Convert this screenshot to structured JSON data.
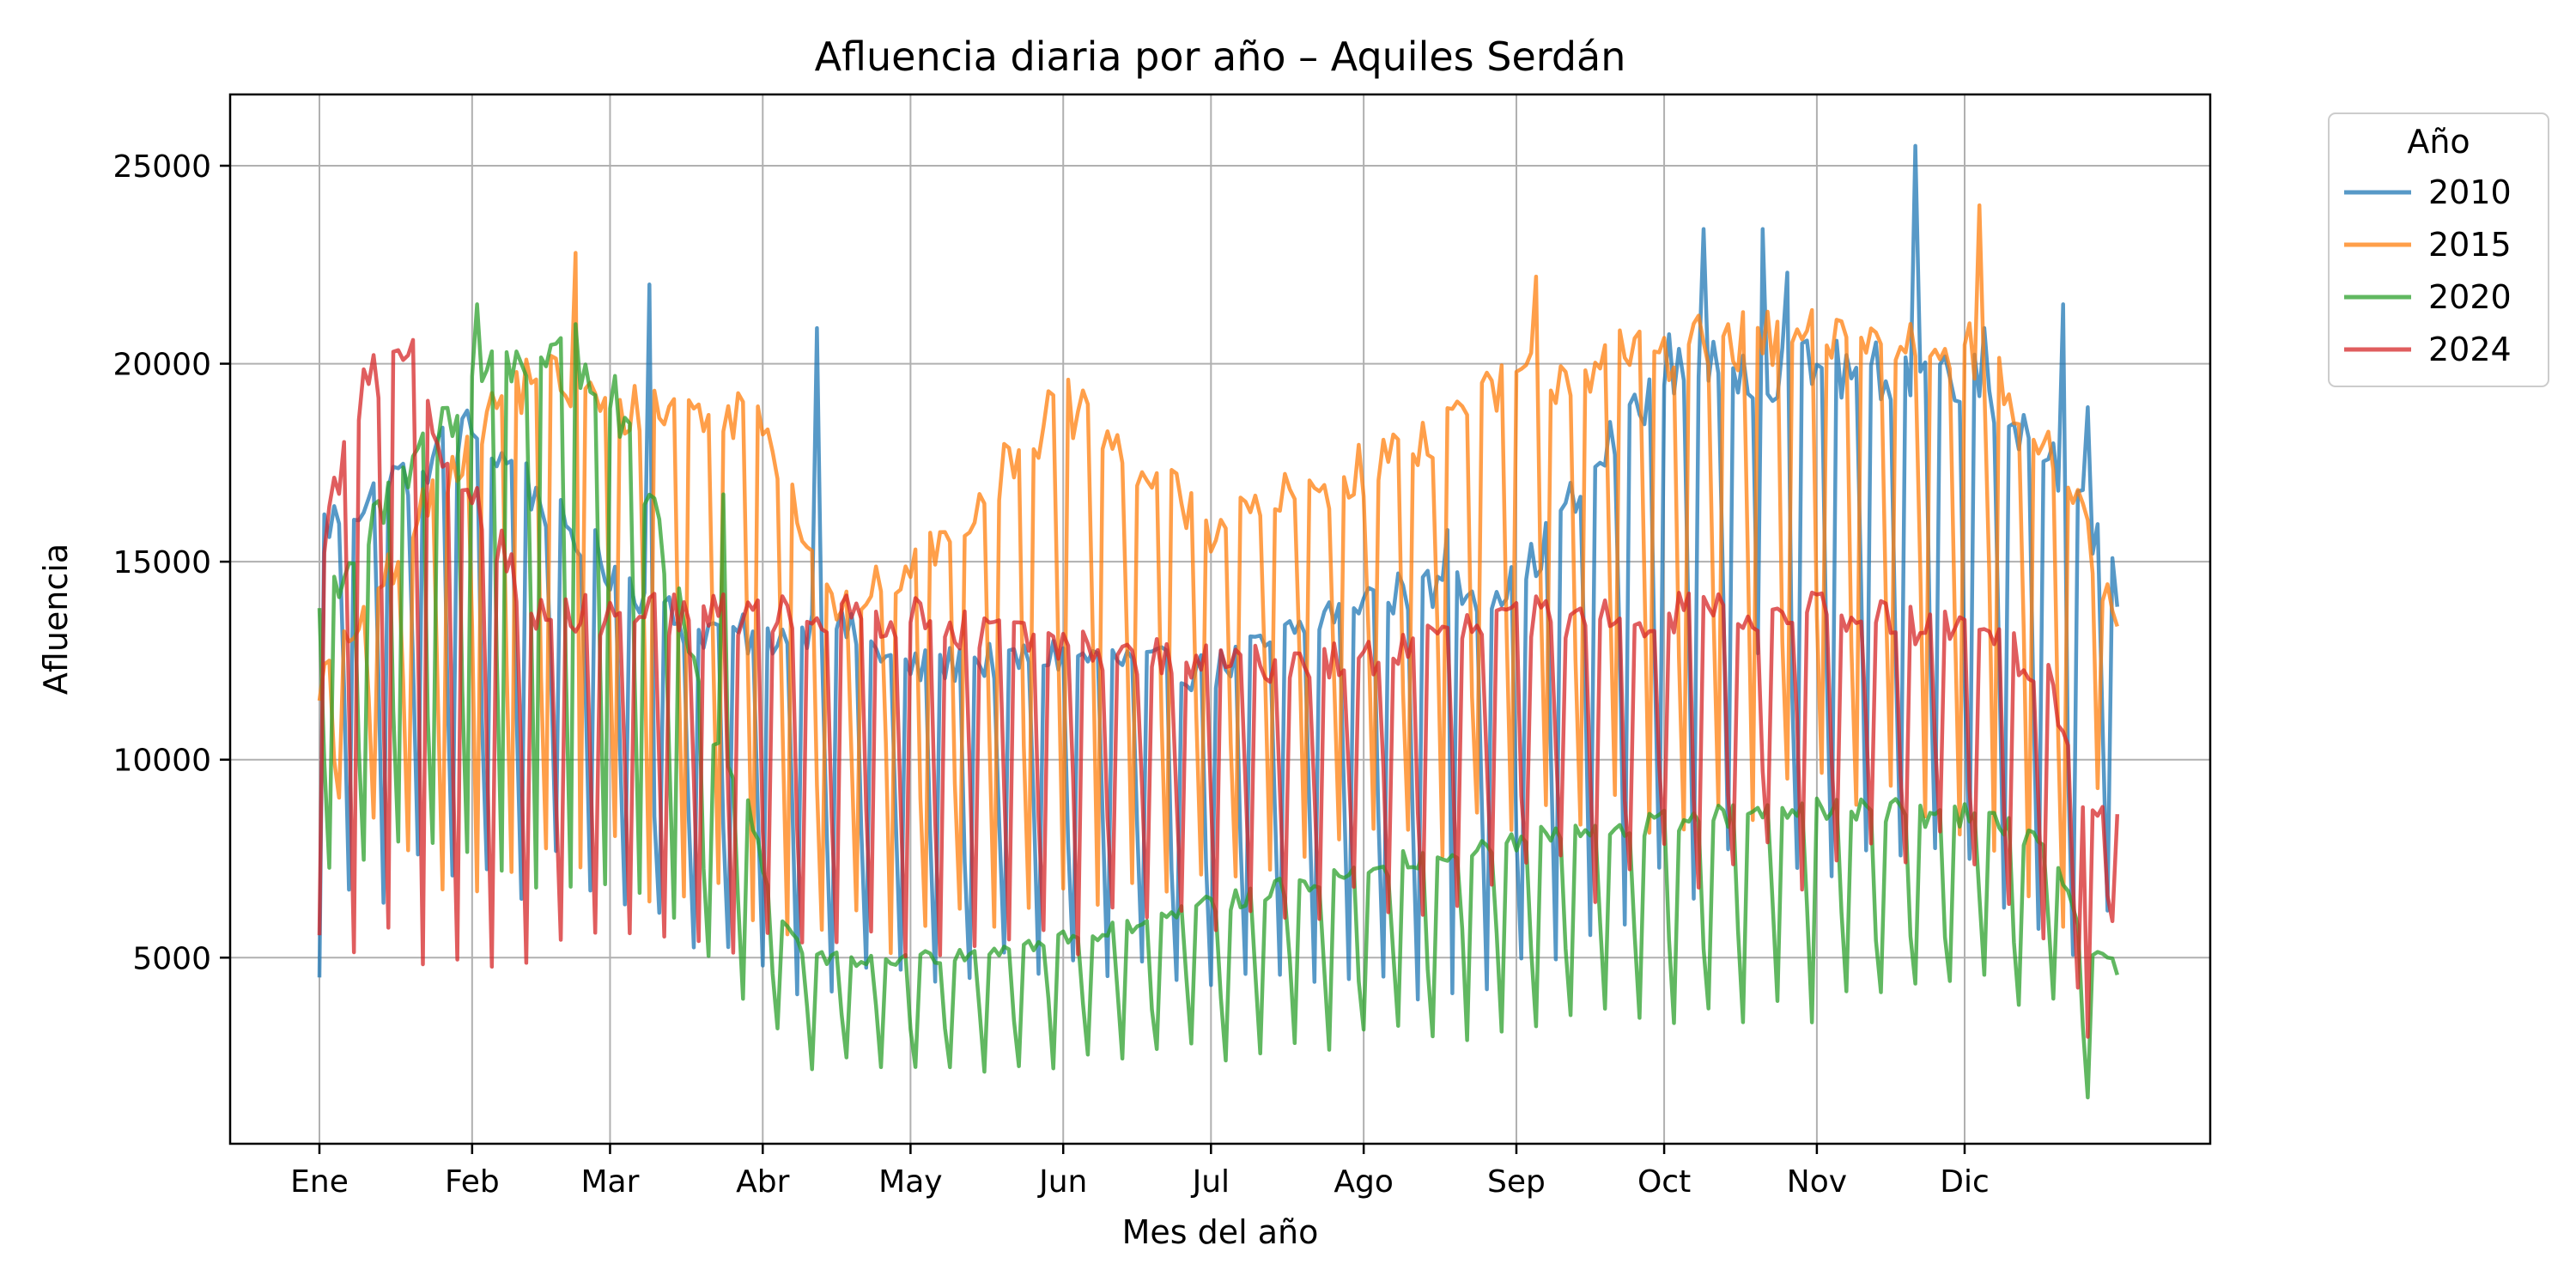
{
  "chart_data": {
    "type": "line",
    "title": "Afluencia diaria por año – Aquiles Serdán",
    "xlabel": "Mes del año",
    "ylabel": "Afluencia",
    "x_range_day": [
      1,
      366
    ],
    "ylim": [
      300,
      26800
    ],
    "month_ticks": [
      {
        "label": "Ene",
        "day": 1
      },
      {
        "label": "Feb",
        "day": 32
      },
      {
        "label": "Mar",
        "day": 60
      },
      {
        "label": "Abr",
        "day": 91
      },
      {
        "label": "May",
        "day": 121
      },
      {
        "label": "Jun",
        "day": 152
      },
      {
        "label": "Jul",
        "day": 182
      },
      {
        "label": "Ago",
        "day": 213
      },
      {
        "label": "Sep",
        "day": 244
      },
      {
        "label": "Oct",
        "day": 274
      },
      {
        "label": "Nov",
        "day": 305
      },
      {
        "label": "Dic",
        "day": 335
      }
    ],
    "y_ticks": [
      5000,
      10000,
      15000,
      20000,
      25000
    ],
    "grid": true,
    "legend": {
      "title": "Año",
      "placement": "outside-top-right"
    },
    "series": [
      {
        "name": "2010",
        "color": "#1f77b4",
        "profile": {
          "weekday_level_by_month": [
            [
              1,
              16000
            ],
            [
              32,
              18500
            ],
            [
              60,
              15000
            ],
            [
              75,
              13500
            ],
            [
              91,
              13200
            ],
            [
              105,
              13600
            ],
            [
              121,
              12400
            ],
            [
              152,
              12800
            ],
            [
              182,
              12300
            ],
            [
              213,
              14300
            ],
            [
              244,
              14500
            ],
            [
              274,
              20200
            ],
            [
              305,
              20000
            ],
            [
              335,
              20000
            ],
            [
              355,
              17500
            ],
            [
              366,
              14500
            ]
          ],
          "weekend_level_by_month": [
            [
              1,
              7000
            ],
            [
              32,
              7000
            ],
            [
              60,
              7000
            ],
            [
              75,
              5200
            ],
            [
              91,
              4500
            ],
            [
              121,
              4600
            ],
            [
              152,
              4700
            ],
            [
              182,
              4400
            ],
            [
              213,
              4200
            ],
            [
              244,
              4500
            ],
            [
              274,
              6800
            ],
            [
              305,
              7400
            ],
            [
              335,
              7800
            ],
            [
              355,
              5500
            ],
            [
              366,
              5800
            ]
          ],
          "peaks": [
            [
              1,
              4500
            ],
            [
              68,
              22000
            ],
            [
              102,
              20900
            ],
            [
              230,
              15800
            ],
            [
              282,
              23400
            ],
            [
              294,
              23400
            ],
            [
              299,
              22300
            ],
            [
              325,
              25500
            ],
            [
              339,
              20900
            ],
            [
              355,
              21500
            ],
            [
              360,
              18900
            ]
          ]
        }
      },
      {
        "name": "2015",
        "color": "#ff7f0e",
        "profile": {
          "weekday_level_by_month": [
            [
              1,
              12000
            ],
            [
              32,
              18500
            ],
            [
              45,
              20000
            ],
            [
              60,
              19000
            ],
            [
              91,
              19000
            ],
            [
              105,
              14000
            ],
            [
              121,
              14800
            ],
            [
              152,
              19200
            ],
            [
              182,
              16000
            ],
            [
              213,
              17500
            ],
            [
              244,
              19700
            ],
            [
              274,
              20600
            ],
            [
              305,
              20800
            ],
            [
              335,
              20800
            ],
            [
              355,
              17500
            ],
            [
              366,
              13500
            ]
          ],
          "weekend_level_by_month": [
            [
              1,
              8500
            ],
            [
              32,
              7000
            ],
            [
              60,
              7500
            ],
            [
              91,
              6000
            ],
            [
              121,
              5500
            ],
            [
              152,
              6500
            ],
            [
              182,
              7000
            ],
            [
              213,
              8000
            ],
            [
              244,
              8200
            ],
            [
              274,
              8500
            ],
            [
              305,
              8800
            ],
            [
              335,
              9000
            ],
            [
              355,
              5500
            ],
            [
              366,
              10200
            ]
          ],
          "peaks": [
            [
              53,
              22800
            ],
            [
              248,
              22200
            ],
            [
              338,
              24000
            ],
            [
              361,
              14700
            ]
          ]
        }
      },
      {
        "name": "2020",
        "color": "#2ca02c",
        "profile": {
          "weekday_level_by_month": [
            [
              1,
              14000
            ],
            [
              32,
              19800
            ],
            [
              46,
              20500
            ],
            [
              60,
              19500
            ],
            [
              72,
              15000
            ],
            [
              80,
              11000
            ],
            [
              88,
              9000
            ],
            [
              93,
              6500
            ],
            [
              100,
              5000
            ],
            [
              121,
              5000
            ],
            [
              152,
              5500
            ],
            [
              182,
              6400
            ],
            [
              213,
              7300
            ],
            [
              244,
              8000
            ],
            [
              274,
              8500
            ],
            [
              305,
              8800
            ],
            [
              335,
              8700
            ],
            [
              352,
              8000
            ],
            [
              360,
              5000
            ],
            [
              366,
              5000
            ]
          ],
          "weekend_level_by_month": [
            [
              1,
              7000
            ],
            [
              32,
              7500
            ],
            [
              60,
              7000
            ],
            [
              75,
              5500
            ],
            [
              88,
              3800
            ],
            [
              100,
              2300
            ],
            [
              121,
              2200
            ],
            [
              152,
              2400
            ],
            [
              182,
              2600
            ],
            [
              213,
              3000
            ],
            [
              244,
              3300
            ],
            [
              274,
              3500
            ],
            [
              305,
              3700
            ],
            [
              335,
              4200
            ],
            [
              355,
              4000
            ],
            [
              360,
              1500
            ],
            [
              366,
              3800
            ]
          ],
          "peaks": [
            [
              33,
              21500
            ],
            [
              53,
              21000
            ],
            [
              83,
              16700
            ],
            [
              363,
              5100
            ]
          ]
        }
      },
      {
        "name": "2024",
        "color": "#d62728",
        "profile": {
          "weekday_level_by_month": [
            [
              1,
              15500
            ],
            [
              10,
              19500
            ],
            [
              20,
              20300
            ],
            [
              26,
              17000
            ],
            [
              32,
              17000
            ],
            [
              45,
              13700
            ],
            [
              60,
              13800
            ],
            [
              91,
              13800
            ],
            [
              121,
              13700
            ],
            [
              152,
              13000
            ],
            [
              182,
              12500
            ],
            [
              213,
              12700
            ],
            [
              244,
              13700
            ],
            [
              274,
              13800
            ],
            [
              305,
              13900
            ],
            [
              335,
              13400
            ],
            [
              352,
              12400
            ],
            [
              360,
              8500
            ],
            [
              366,
              8800
            ]
          ],
          "weekend_level_by_month": [
            [
              1,
              5200
            ],
            [
              32,
              5300
            ],
            [
              60,
              5300
            ],
            [
              91,
              5200
            ],
            [
              121,
              5500
            ],
            [
              152,
              5600
            ],
            [
              182,
              6000
            ],
            [
              213,
              6200
            ],
            [
              244,
              6800
            ],
            [
              274,
              7300
            ],
            [
              305,
              7300
            ],
            [
              335,
              7600
            ],
            [
              355,
              5500
            ],
            [
              360,
              3200
            ],
            [
              366,
              6300
            ]
          ],
          "peaks": [
            [
              16,
              20300
            ],
            [
              20,
              20600
            ],
            [
              306,
              14200
            ],
            [
              360,
              3000
            ]
          ]
        }
      }
    ]
  }
}
